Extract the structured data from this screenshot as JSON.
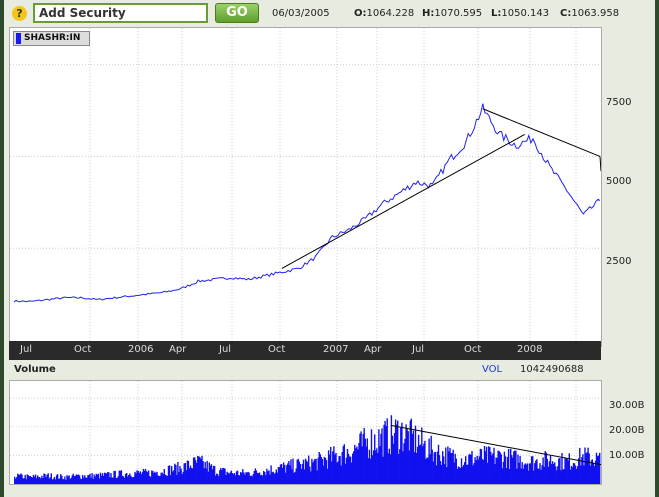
{
  "toolbar": {
    "help_label": "?",
    "security_value": "Add Security",
    "go_label": "GO",
    "date": "06/03/2005",
    "open_label": "O:",
    "open": "1064.228",
    "high_label": "H:",
    "high": "1070.595",
    "low_label": "L:",
    "low": "1050.143",
    "close_label": "C:",
    "close": "1063.958"
  },
  "legend": {
    "label": "SHASHR:IN",
    "color": "#1a1aee"
  },
  "volume": {
    "title": "Volume",
    "label": "VOL",
    "value": "1042490688"
  },
  "colors": {
    "price_line": "#2222ee",
    "volume_bars": "#1010f0",
    "trendline": "#000000",
    "axis_bar": "#2a2a2a"
  },
  "chart_data": [
    {
      "type": "line",
      "series": [
        {
          "name": "SHASHR:IN",
          "x": [
            "2005-06",
            "2005-07",
            "2005-08",
            "2005-09",
            "2005-10",
            "2005-11",
            "2005-12",
            "2006-01",
            "2006-02",
            "2006-03",
            "2006-04",
            "2006-05",
            "2006-06",
            "2006-07",
            "2006-08",
            "2006-09",
            "2006-10",
            "2006-11",
            "2006-12",
            "2007-01",
            "2007-02",
            "2007-03",
            "2007-04",
            "2007-05",
            "2007-06",
            "2007-07",
            "2007-08",
            "2007-09",
            "2007-10",
            "2007-11",
            "2007-12",
            "2008-01",
            "2008-02",
            "2008-03",
            "2008-04",
            "2008-05"
          ],
          "values": [
            1060,
            1050,
            1100,
            1150,
            1150,
            1100,
            1150,
            1200,
            1250,
            1300,
            1400,
            1600,
            1650,
            1700,
            1650,
            1750,
            1850,
            1950,
            2250,
            2800,
            3000,
            3300,
            3700,
            4000,
            4300,
            4200,
            4900,
            5400,
            6300,
            5600,
            5300,
            5500,
            4700,
            4100,
            3400,
            3800
          ]
        }
      ],
      "yticks": [
        "2500",
        "5000",
        "7500"
      ],
      "ylim": [
        0,
        8500
      ],
      "xticks": [
        "Jul",
        "Oct",
        "2006",
        "Apr",
        "Jul",
        "Oct",
        "2007",
        "Apr",
        "Jul",
        "Oct",
        "2008"
      ]
    },
    {
      "type": "bar",
      "series": [
        {
          "name": "VOL",
          "x": [
            "2005-06",
            "2005-07",
            "2005-08",
            "2005-09",
            "2005-10",
            "2005-11",
            "2005-12",
            "2006-01",
            "2006-02",
            "2006-03",
            "2006-04",
            "2006-05",
            "2006-06",
            "2006-07",
            "2006-08",
            "2006-09",
            "2006-10",
            "2006-11",
            "2006-12",
            "2007-01",
            "2007-02",
            "2007-03",
            "2007-04",
            "2007-05",
            "2007-06",
            "2007-07",
            "2007-08",
            "2007-09",
            "2007-10",
            "2007-11",
            "2007-12",
            "2008-01",
            "2008-02",
            "2008-03",
            "2008-04",
            "2008-05"
          ],
          "values": [
            3,
            2.5,
            3,
            2.5,
            3,
            3,
            3.5,
            4,
            4,
            5,
            6,
            8,
            5,
            4,
            4,
            5,
            6,
            7,
            8,
            10,
            12,
            15,
            17,
            19,
            16,
            12,
            10,
            9,
            10,
            10,
            9,
            8,
            9,
            8,
            10,
            9
          ]
        }
      ],
      "yticks": [
        "10.00B",
        "20.00B",
        "30.00B"
      ],
      "ylim": [
        0,
        36
      ]
    }
  ]
}
